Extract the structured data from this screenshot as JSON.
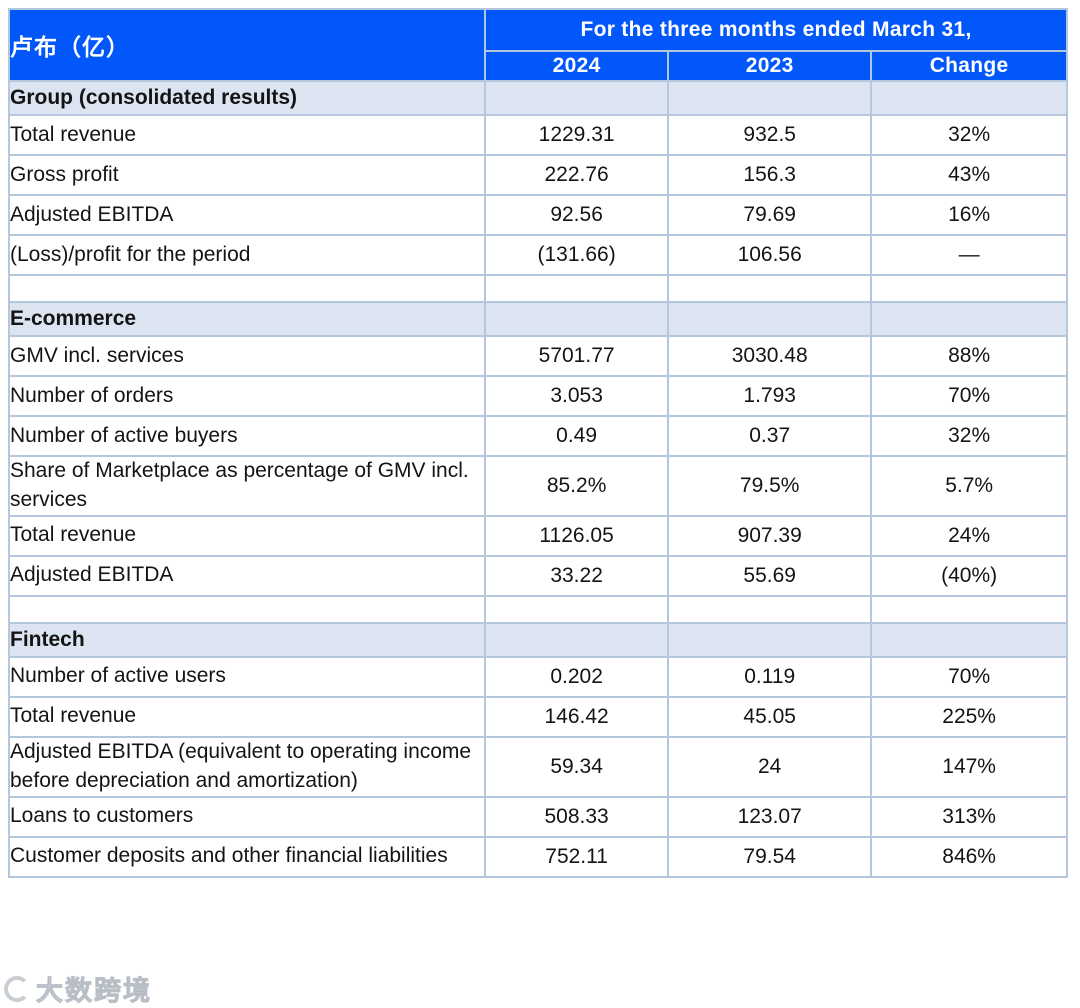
{
  "header": {
    "unit_label": "卢布（亿）",
    "period_label": "For the three months ended March 31,",
    "col_2024": "2024",
    "col_2023": "2023",
    "col_change": "Change"
  },
  "colors": {
    "header_blue": "#0157fa",
    "section_bg": "#dce4f2",
    "border": "#b5c7dd",
    "text": "#141414"
  },
  "sections": [
    {
      "title": "Group (consolidated results)",
      "rows": [
        {
          "label": "Total revenue",
          "y2024": "1229.31",
          "y2023": "932.5",
          "change": "32%"
        },
        {
          "label": "Gross profit",
          "y2024": "222.76",
          "y2023": "156.3",
          "change": "43%"
        },
        {
          "label": "Adjusted EBITDA",
          "y2024": "92.56",
          "y2023": "79.69",
          "change": "16%"
        },
        {
          "label": "(Loss)/profit for the period",
          "y2024": "(131.66)",
          "y2023": "106.56",
          "change": "—"
        }
      ]
    },
    {
      "title": "E-commerce",
      "rows": [
        {
          "label": "GMV incl. services",
          "y2024": "5701.77",
          "y2023": "3030.48",
          "change": "88%"
        },
        {
          "label": "Number of orders",
          "y2024": "3.053",
          "y2023": "1.793",
          "change": "70%"
        },
        {
          "label": "Number of active buyers",
          "y2024": "0.49",
          "y2023": "0.37",
          "change": "32%"
        },
        {
          "label": "Share of Marketplace as percentage of GMV incl. services",
          "y2024": "85.2%",
          "y2023": "79.5%",
          "change": "5.7%"
        },
        {
          "label": "Total revenue",
          "y2024": "1126.05",
          "y2023": "907.39",
          "change": "24%"
        },
        {
          "label": "Adjusted EBITDA",
          "y2024": "33.22",
          "y2023": "55.69",
          "change": "(40%)"
        }
      ]
    },
    {
      "title": "Fintech",
      "rows": [
        {
          "label": "Number of active users",
          "y2024": "0.202",
          "y2023": "0.119",
          "change": "70%"
        },
        {
          "label": "Total revenue",
          "y2024": "146.42",
          "y2023": "45.05",
          "change": "225%"
        },
        {
          "label": "Adjusted EBITDA (equivalent to operating income before depreciation and amortization)",
          "y2024": "59.34",
          "y2023": "24",
          "change": "147%"
        },
        {
          "label": "Loans to customers",
          "y2024": "508.33",
          "y2023": "123.07",
          "change": "313%"
        },
        {
          "label": "Customer deposits and other financial liabilities",
          "y2024": "752.11",
          "y2023": "79.54",
          "change": "846%"
        }
      ]
    }
  ],
  "watermark": {
    "text": "大数跨境",
    "icon": "circular-logo-icon"
  }
}
